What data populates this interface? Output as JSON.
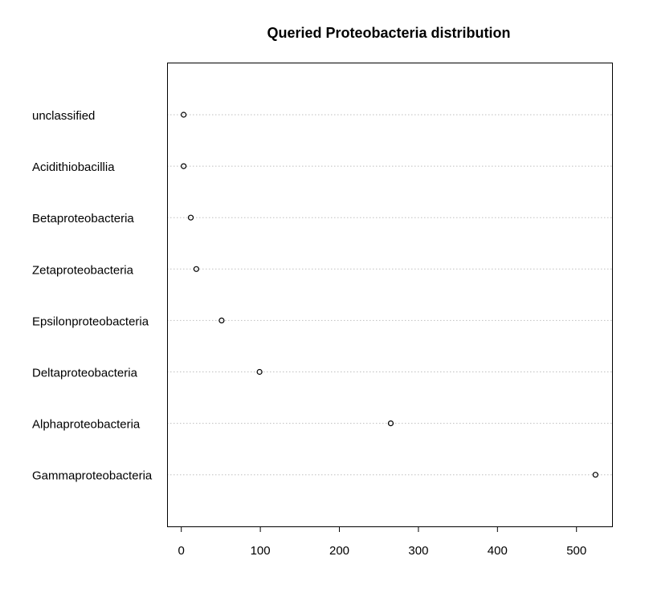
{
  "chart_data": {
    "type": "scatter",
    "subtype": "dotchart",
    "title": "Queried Proteobacteria distribution",
    "xlabel": "",
    "ylabel": "",
    "categories": [
      "unclassified",
      "Acidithiobacillia",
      "Betaproteobacteria",
      "Zetaproteobacteria",
      "Epsilonproteobacteria",
      "Deltaproteobacteria",
      "Alphaproteobacteria",
      "Gammaproteobacteria"
    ],
    "values": [
      3,
      3,
      12,
      19,
      51,
      99,
      265,
      524
    ],
    "xlim": [
      -18,
      545
    ],
    "xticks": [
      0,
      100,
      200,
      300,
      400,
      500
    ],
    "grid": "horizontal-dotted",
    "legend": "none",
    "colors": {
      "point_stroke": "#000000",
      "guide": "#bfbfbf",
      "frame": "#000000"
    }
  }
}
